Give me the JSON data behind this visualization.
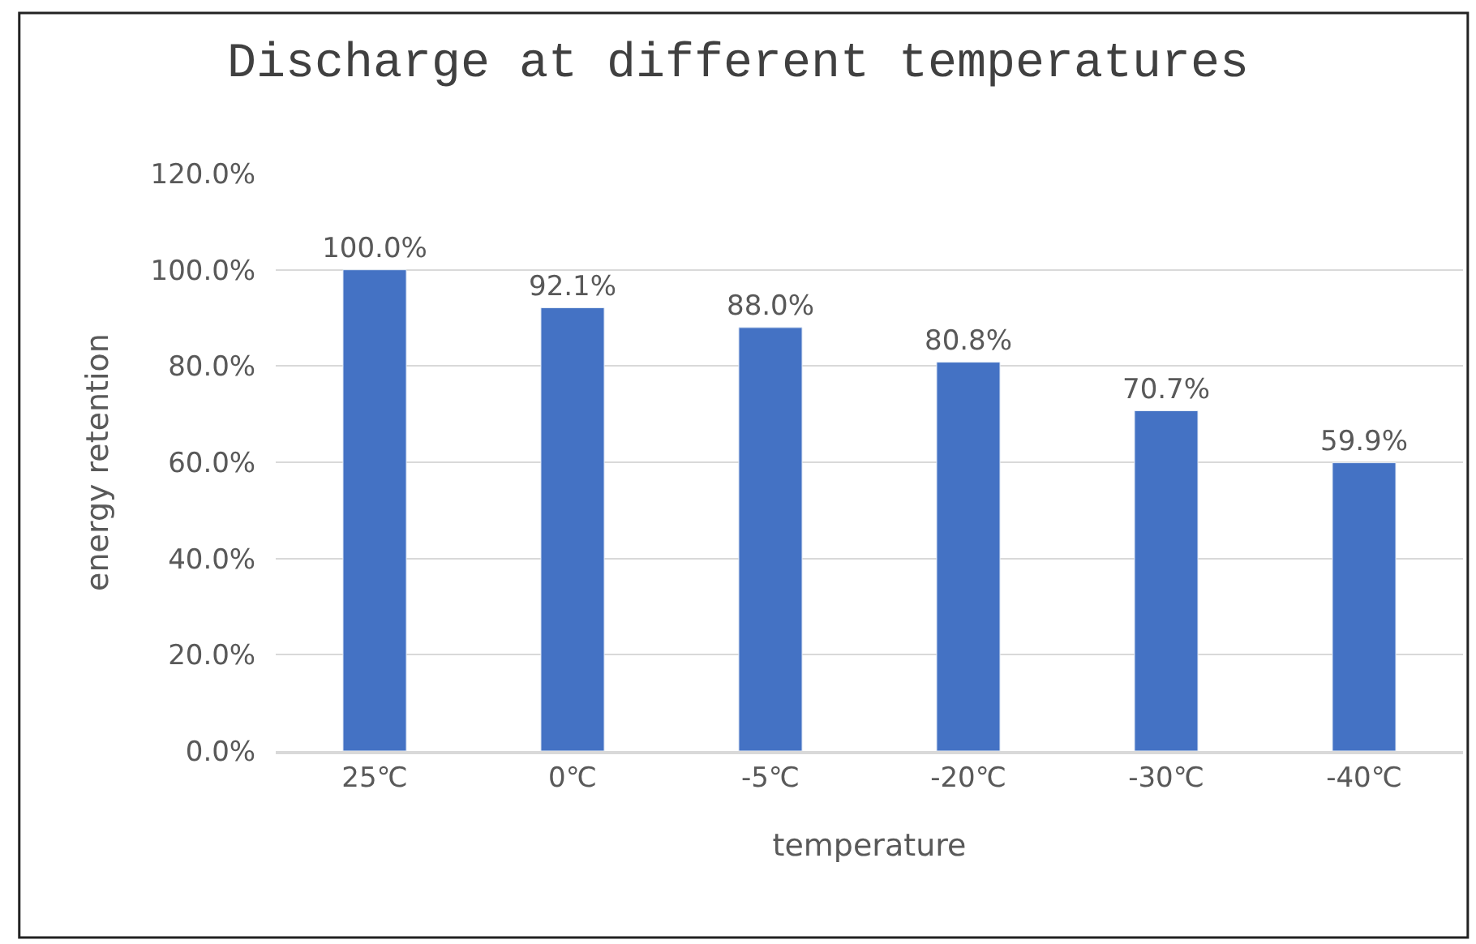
{
  "chart_data": {
    "type": "bar",
    "title": "Discharge at different temperatures",
    "xlabel": "temperature",
    "ylabel": "energy retention",
    "categories": [
      "25℃",
      "0℃",
      "-5℃",
      "-20℃",
      "-30℃",
      "-40℃"
    ],
    "values": [
      100.0,
      92.1,
      88.0,
      80.8,
      70.7,
      59.9
    ],
    "color": "#4472c4",
    "value_labels": [
      "100.0%",
      "92.1%",
      "88.0%",
      "80.8%",
      "70.7%",
      "59.9%"
    ],
    "ylim": [
      0,
      120
    ],
    "yticks": [
      {
        "value": 0,
        "label": "0.0%"
      },
      {
        "value": 20,
        "label": "20.0%"
      },
      {
        "value": 40,
        "label": "40.0%"
      },
      {
        "value": 60,
        "label": "60.0%"
      },
      {
        "value": 80,
        "label": "80.0%"
      },
      {
        "value": 100,
        "label": "100.0%"
      },
      {
        "value": 120,
        "label": "120.0%"
      }
    ],
    "grid": "y"
  }
}
